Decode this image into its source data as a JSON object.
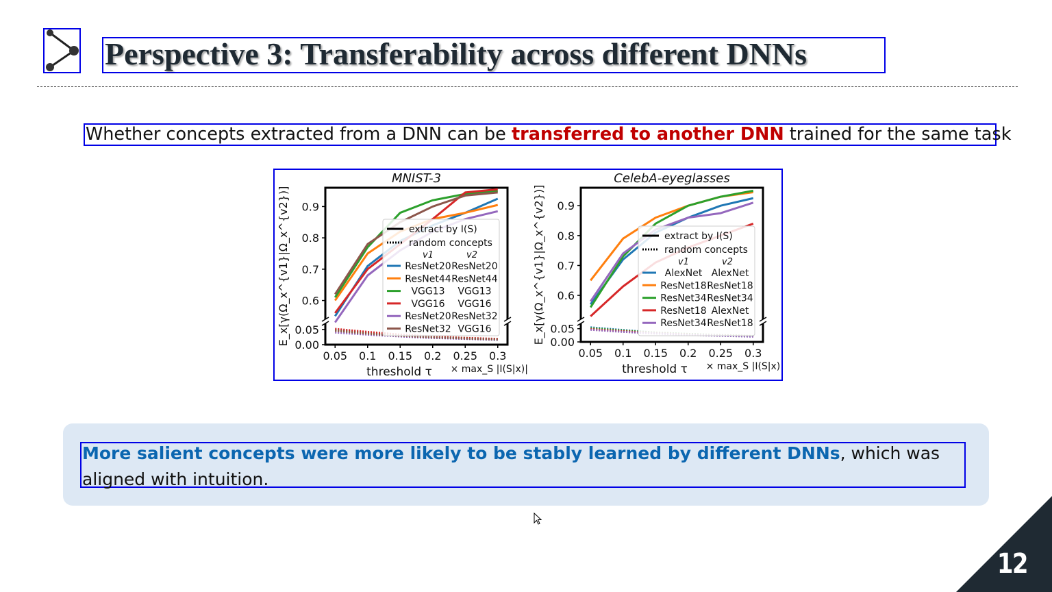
{
  "slide": {
    "title": "Perspective 3: Transferability across different DNNs",
    "subtitle_pre": "Whether concepts extracted from a DNN can be ",
    "subtitle_highlight": "transferred to another DNN",
    "subtitle_post": " trained for the same task",
    "callout_highlight": "More salient concepts were more likely to be stably learned by different DNNs",
    "callout_rest": ", which was aligned with intuition.",
    "page_number": "12",
    "accent_red": "#c00000",
    "accent_blue": "#0b66b0",
    "callout_bg": "#dde8f4",
    "corner_color": "#1f2a33"
  },
  "chart_data": [
    {
      "type": "line",
      "title": "MNIST-3",
      "xlabel": "threshold τ",
      "x_suffix": "× max_S |I(S|x)|",
      "ylabel": "E_x[γ(Ω_x^{v1}|Ω_x^{v2})]",
      "x": [
        0.05,
        0.1,
        0.15,
        0.2,
        0.25,
        0.3
      ],
      "x_ticks": [
        "0.05",
        "0.1",
        "0.15",
        "0.2",
        "0.25",
        "0.3"
      ],
      "y_ticks_upper": [
        "0.6",
        "0.7",
        "0.8",
        "0.9"
      ],
      "y_ticks_lower": [
        "0.00",
        "0.05"
      ],
      "ylim_upper": [
        0.54,
        0.96
      ],
      "ylim_lower": [
        0.0,
        0.07
      ],
      "legend_style": [
        "extract by I(S)",
        "random concepts"
      ],
      "legend_headers": [
        "v1",
        "v2"
      ],
      "series": [
        {
          "v1": "ResNet20",
          "v2": "ResNet20",
          "color": "#1f77b4",
          "values": [
            0.55,
            0.71,
            0.79,
            0.84,
            0.88,
            0.925
          ],
          "random": [
            0.05,
            0.04,
            0.03,
            0.024,
            0.02,
            0.016
          ]
        },
        {
          "v1": "ResNet44",
          "v2": "ResNet44",
          "color": "#ff7f0e",
          "values": [
            0.6,
            0.75,
            0.82,
            0.86,
            0.88,
            0.905
          ],
          "random": [
            0.045,
            0.037,
            0.03,
            0.025,
            0.021,
            0.018
          ]
        },
        {
          "v1": "VGG13",
          "v2": "VGG13",
          "color": "#2ca02c",
          "values": [
            0.61,
            0.77,
            0.88,
            0.92,
            0.94,
            0.95
          ],
          "random": [
            0.048,
            0.038,
            0.031,
            0.026,
            0.022,
            0.018
          ]
        },
        {
          "v1": "VGG16",
          "v2": "VGG16",
          "color": "#d62728",
          "values": [
            0.56,
            0.7,
            0.78,
            0.86,
            0.945,
            0.955
          ],
          "random": [
            0.052,
            0.042,
            0.033,
            0.027,
            0.022,
            0.019
          ]
        },
        {
          "v1": "ResNet20",
          "v2": "ResNet32",
          "color": "#9467bd",
          "values": [
            0.53,
            0.68,
            0.76,
            0.82,
            0.86,
            0.885
          ],
          "random": [
            0.04,
            0.033,
            0.027,
            0.022,
            0.019,
            0.016
          ]
        },
        {
          "v1": "ResNet32",
          "v2": "VGG16",
          "color": "#8c564b",
          "values": [
            0.62,
            0.78,
            0.85,
            0.9,
            0.935,
            0.945
          ],
          "random": [
            0.046,
            0.036,
            0.029,
            0.024,
            0.02,
            0.017
          ]
        }
      ]
    },
    {
      "type": "line",
      "title": "CelebA-eyeglasses",
      "xlabel": "threshold τ",
      "x_suffix": "× max_S |I(S|x)|",
      "ylabel": "E_x[γ(Ω_x^{v1}|Ω_x^{v2})]",
      "x": [
        0.05,
        0.1,
        0.15,
        0.2,
        0.25,
        0.3
      ],
      "x_ticks": [
        "0.05",
        "0.1",
        "0.15",
        "0.2",
        "0.25",
        "0.3"
      ],
      "y_ticks_upper": [
        "0.6",
        "0.7",
        "0.8",
        "0.9"
      ],
      "y_ticks_lower": [
        "0.00",
        "0.05"
      ],
      "ylim_upper": [
        0.52,
        0.96
      ],
      "ylim_lower": [
        0.0,
        0.07
      ],
      "legend_style": [
        "extract by I(S)",
        "random concepts"
      ],
      "legend_headers": [
        "v1",
        "v2"
      ],
      "series": [
        {
          "v1": "AlexNet",
          "v2": "AlexNet",
          "color": "#1f77b4",
          "values": [
            0.57,
            0.72,
            0.81,
            0.86,
            0.9,
            0.925
          ],
          "random": [
            0.055,
            0.045,
            0.035,
            0.03,
            0.025,
            0.022
          ]
        },
        {
          "v1": "ResNet18",
          "v2": "ResNet18",
          "color": "#ff7f0e",
          "values": [
            0.65,
            0.79,
            0.86,
            0.9,
            0.93,
            0.945
          ],
          "random": [
            0.05,
            0.042,
            0.034,
            0.029,
            0.025,
            0.022
          ]
        },
        {
          "v1": "ResNet34",
          "v2": "ResNet34",
          "color": "#2ca02c",
          "values": [
            0.56,
            0.73,
            0.84,
            0.9,
            0.93,
            0.95
          ],
          "random": [
            0.052,
            0.043,
            0.035,
            0.03,
            0.026,
            0.022
          ]
        },
        {
          "v1": "ResNet18",
          "v2": "AlexNet",
          "color": "#d62728",
          "values": [
            0.53,
            0.63,
            0.71,
            0.76,
            0.8,
            0.84
          ],
          "random": [
            0.048,
            0.04,
            0.033,
            0.028,
            0.024,
            0.021
          ]
        },
        {
          "v1": "ResNet34",
          "v2": "ResNet18",
          "color": "#9467bd",
          "values": [
            0.58,
            0.74,
            0.82,
            0.86,
            0.875,
            0.91
          ],
          "random": [
            0.046,
            0.038,
            0.032,
            0.027,
            0.023,
            0.02
          ]
        }
      ]
    }
  ]
}
